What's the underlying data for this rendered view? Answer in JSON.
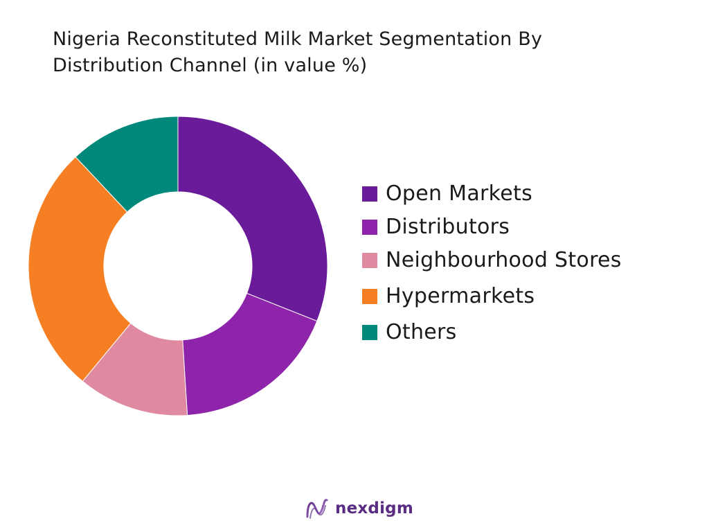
{
  "title": {
    "line1": "Nigeria Reconstituted Milk Market Segmentation By",
    "line2": "Distribution Channel (in value %)"
  },
  "chart_data": {
    "type": "pie",
    "donut": true,
    "categories": [
      "Open Markets",
      "Distributors",
      "Neighbourhood Stores",
      "Hypermarkets",
      "Others"
    ],
    "values": [
      31,
      18,
      12,
      27,
      12
    ],
    "colors": [
      "#6a1b9a",
      "#8e24aa",
      "#e08aa2",
      "#f57f22",
      "#00897b"
    ],
    "legend_position": "right"
  },
  "logo": {
    "text": "nexdigm",
    "icon": "nexdigm-logo-icon",
    "colors": [
      "#5a2d82",
      "#9b59b6"
    ]
  }
}
